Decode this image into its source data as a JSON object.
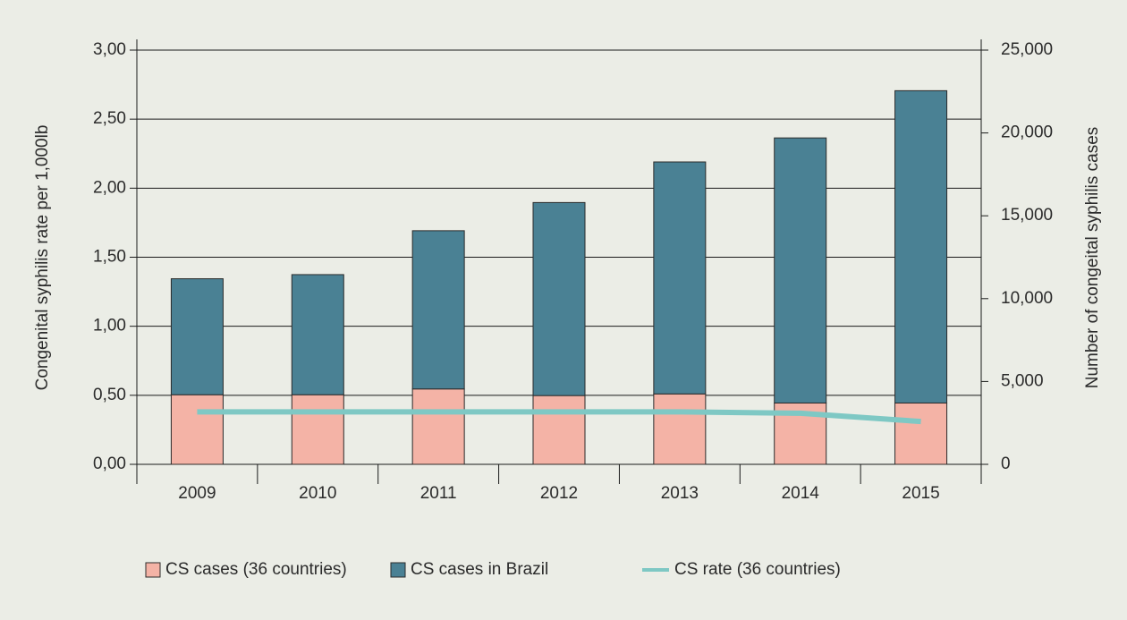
{
  "chart_data": {
    "type": "bar",
    "categories": [
      "2009",
      "2010",
      "2011",
      "2012",
      "2013",
      "2014",
      "2015"
    ],
    "series": [
      {
        "name": "CS cases (36 countries)",
        "type": "bar",
        "axis": "y2",
        "color": "#f4b3a6",
        "values": [
          4200,
          4200,
          4550,
          4150,
          4250,
          3700,
          3700
        ]
      },
      {
        "name": "CS cases in Brazil",
        "type": "bar",
        "axis": "y2",
        "color": "#4a8194",
        "values": [
          7000,
          7250,
          9550,
          11650,
          14000,
          16000,
          18850
        ]
      },
      {
        "name": "CS rate (36 countries)",
        "type": "line",
        "axis": "y",
        "color": "#7ec8c4",
        "values": [
          0.38,
          0.38,
          0.38,
          0.38,
          0.38,
          0.37,
          0.31
        ]
      }
    ],
    "y_label": "Congenital syphilis rate per 1,000lb",
    "y2_label": "Number of congeital syphilis cases",
    "ylim": [
      0,
      3
    ],
    "yticks": [
      {
        "value": 0,
        "label": "0,00"
      },
      {
        "value": 0.5,
        "label": "0,50"
      },
      {
        "value": 1,
        "label": "1,00"
      },
      {
        "value": 1.5,
        "label": "1,50"
      },
      {
        "value": 2,
        "label": "2,00"
      },
      {
        "value": 2.5,
        "label": "2,50"
      },
      {
        "value": 3,
        "label": "3,00"
      }
    ],
    "y2lim": [
      0,
      25000
    ],
    "y2ticks": [
      0,
      {
        "value": 5000,
        "label": "5,000"
      },
      {
        "value": 10000,
        "label": "10,000"
      },
      {
        "value": 15000,
        "label": "15,000"
      },
      {
        "value": 20000,
        "label": "20,000"
      },
      {
        "value": 25000,
        "label": "25,000"
      }
    ],
    "grid": true,
    "legend": "bottom"
  }
}
